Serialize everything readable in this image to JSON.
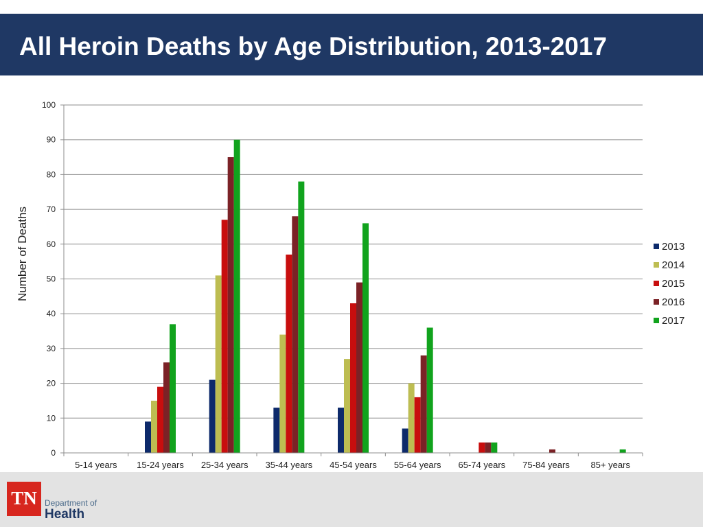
{
  "header": {
    "title": "All Heroin Deaths by Age Distribution, 2013-2017"
  },
  "chart_data": {
    "type": "bar",
    "title": "All Heroin Deaths by Age Distribution, 2013-2017",
    "xlabel": "",
    "ylabel": "Number of Deaths",
    "ylim": [
      0,
      100
    ],
    "yticks": [
      0,
      10,
      20,
      30,
      40,
      50,
      60,
      70,
      80,
      90,
      100
    ],
    "grid": true,
    "legend_position": "right",
    "categories": [
      "5-14 years",
      "15-24 years",
      "25-34 years",
      "35-44 years",
      "45-54 years",
      "55-64 years",
      "65-74 years",
      "75-84 years",
      "85+ years"
    ],
    "series": [
      {
        "name": "2013",
        "color": "#0d2a6b",
        "values": [
          0,
          9,
          21,
          13,
          13,
          7,
          0,
          0,
          0
        ]
      },
      {
        "name": "2014",
        "color": "#bdbd52",
        "values": [
          0,
          15,
          51,
          34,
          27,
          20,
          0,
          0,
          0
        ]
      },
      {
        "name": "2015",
        "color": "#c80e0e",
        "values": [
          0,
          19,
          67,
          57,
          43,
          16,
          3,
          0,
          0
        ]
      },
      {
        "name": "2016",
        "color": "#7b2226",
        "values": [
          0,
          26,
          85,
          68,
          49,
          28,
          3,
          1,
          0
        ]
      },
      {
        "name": "2017",
        "color": "#11a31d",
        "values": [
          0,
          37,
          90,
          78,
          66,
          36,
          3,
          0,
          1
        ]
      }
    ]
  },
  "footer": {
    "logo_initials": "TN",
    "logo_line1": "Department of",
    "logo_line2": "Health"
  }
}
